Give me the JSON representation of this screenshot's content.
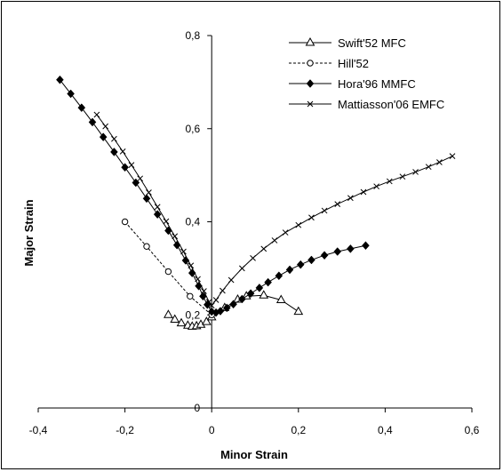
{
  "chart_data": {
    "type": "scatter",
    "title": "",
    "xlabel": "Minor Strain",
    "ylabel": "Major Strain",
    "xlim": [
      -0.4,
      0.6
    ],
    "ylim": [
      0,
      0.8
    ],
    "xticks": [
      -0.4,
      -0.2,
      0,
      0.2,
      0.4,
      0.6
    ],
    "xtick_labels": [
      "-0,4",
      "-0,2",
      "0",
      "0,2",
      "0,4",
      "0,6"
    ],
    "yticks": [
      0,
      0.2,
      0.4,
      0.6,
      0.8
    ],
    "ytick_labels": [
      "0",
      "0,2",
      "0,4",
      "0,6",
      "0,8"
    ],
    "grid": false,
    "legend_position": "top-right",
    "series": [
      {
        "name": "Swift'52 MFC",
        "marker": "triangle-open",
        "line": "solid",
        "color": "#000000",
        "points": [
          [
            -0.1,
            0.2
          ],
          [
            -0.085,
            0.19
          ],
          [
            -0.07,
            0.182
          ],
          [
            -0.055,
            0.177
          ],
          [
            -0.045,
            0.175
          ],
          [
            -0.035,
            0.176
          ],
          [
            -0.025,
            0.179
          ],
          [
            -0.012,
            0.185
          ],
          [
            0.0,
            0.195
          ],
          [
            0.03,
            0.215
          ],
          [
            0.06,
            0.233
          ],
          [
            0.08,
            0.24
          ],
          [
            0.12,
            0.242
          ],
          [
            0.16,
            0.232
          ],
          [
            0.2,
            0.207
          ]
        ]
      },
      {
        "name": "Hill'52",
        "marker": "circle-open",
        "line": "dashed",
        "color": "#000000",
        "points": [
          [
            -0.2,
            0.4
          ],
          [
            -0.15,
            0.347
          ],
          [
            -0.1,
            0.293
          ],
          [
            -0.05,
            0.24
          ],
          [
            0.0,
            0.2
          ]
        ]
      },
      {
        "name": "Hora'96 MMFC",
        "marker": "diamond-filled",
        "line": "solid",
        "color": "#000000",
        "points": [
          [
            -0.35,
            0.705
          ],
          [
            -0.325,
            0.675
          ],
          [
            -0.3,
            0.645
          ],
          [
            -0.275,
            0.614
          ],
          [
            -0.25,
            0.582
          ],
          [
            -0.225,
            0.55
          ],
          [
            -0.2,
            0.517
          ],
          [
            -0.175,
            0.484
          ],
          [
            -0.15,
            0.45
          ],
          [
            -0.125,
            0.416
          ],
          [
            -0.1,
            0.381
          ],
          [
            -0.08,
            0.35
          ],
          [
            -0.06,
            0.317
          ],
          [
            -0.045,
            0.29
          ],
          [
            -0.03,
            0.262
          ],
          [
            -0.02,
            0.24
          ],
          [
            -0.01,
            0.222
          ],
          [
            0.0,
            0.207
          ],
          [
            0.01,
            0.205
          ],
          [
            0.02,
            0.208
          ],
          [
            0.035,
            0.215
          ],
          [
            0.05,
            0.223
          ],
          [
            0.07,
            0.234
          ],
          [
            0.09,
            0.246
          ],
          [
            0.11,
            0.258
          ],
          [
            0.13,
            0.27
          ],
          [
            0.155,
            0.284
          ],
          [
            0.18,
            0.297
          ],
          [
            0.205,
            0.308
          ],
          [
            0.23,
            0.318
          ],
          [
            0.26,
            0.328
          ],
          [
            0.29,
            0.336
          ],
          [
            0.32,
            0.342
          ],
          [
            0.355,
            0.349
          ]
        ]
      },
      {
        "name": "Mattiasson'06 EMFC",
        "marker": "x",
        "line": "solid",
        "color": "#000000",
        "points": [
          [
            -0.265,
            0.63
          ],
          [
            -0.245,
            0.605
          ],
          [
            -0.225,
            0.578
          ],
          [
            -0.205,
            0.551
          ],
          [
            -0.185,
            0.522
          ],
          [
            -0.165,
            0.493
          ],
          [
            -0.145,
            0.463
          ],
          [
            -0.125,
            0.432
          ],
          [
            -0.105,
            0.401
          ],
          [
            -0.085,
            0.369
          ],
          [
            -0.065,
            0.336
          ],
          [
            -0.048,
            0.306
          ],
          [
            -0.032,
            0.277
          ],
          [
            -0.018,
            0.251
          ],
          [
            -0.006,
            0.228
          ],
          [
            0.0,
            0.22
          ],
          [
            0.01,
            0.232
          ],
          [
            0.025,
            0.252
          ],
          [
            0.045,
            0.275
          ],
          [
            0.07,
            0.3
          ],
          [
            0.095,
            0.322
          ],
          [
            0.12,
            0.342
          ],
          [
            0.145,
            0.36
          ],
          [
            0.17,
            0.377
          ],
          [
            0.2,
            0.393
          ],
          [
            0.23,
            0.409
          ],
          [
            0.26,
            0.424
          ],
          [
            0.29,
            0.438
          ],
          [
            0.32,
            0.451
          ],
          [
            0.35,
            0.464
          ],
          [
            0.38,
            0.476
          ],
          [
            0.41,
            0.487
          ],
          [
            0.44,
            0.497
          ],
          [
            0.47,
            0.507
          ],
          [
            0.5,
            0.518
          ],
          [
            0.525,
            0.528
          ],
          [
            0.555,
            0.541
          ]
        ]
      }
    ]
  }
}
